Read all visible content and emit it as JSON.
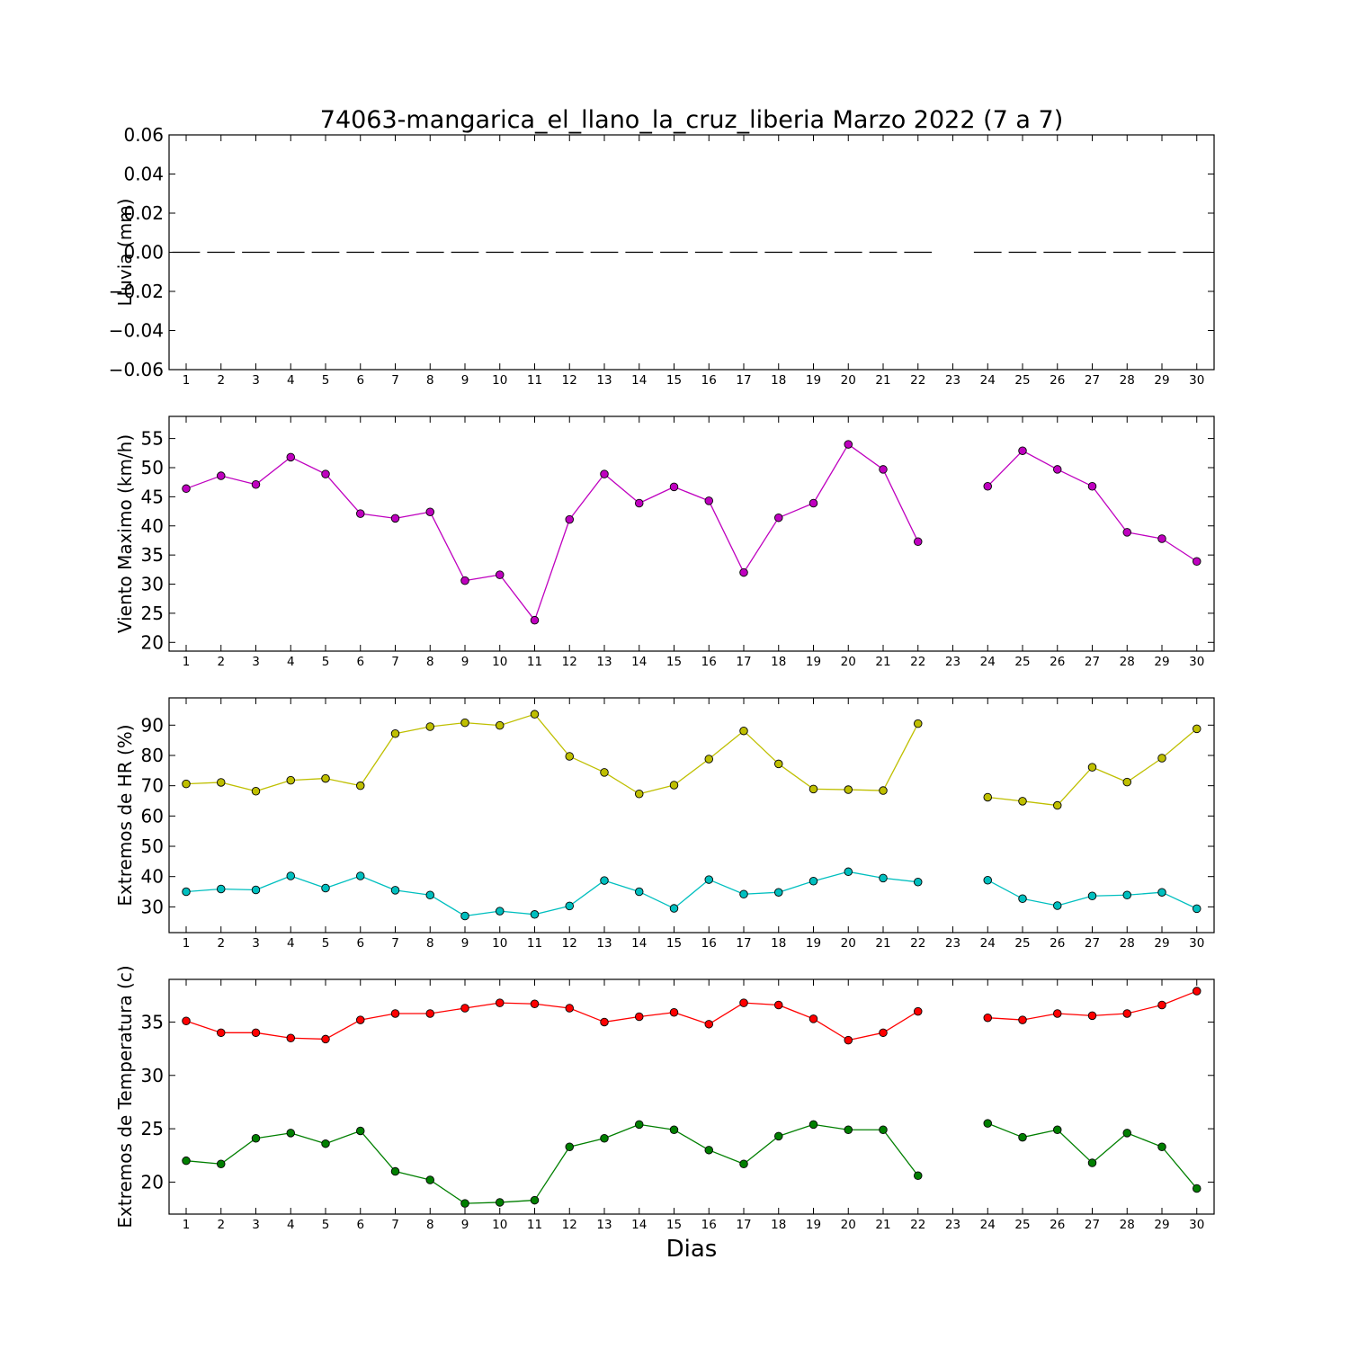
{
  "title": "74063-mangarica_el_llano_la_cruz_liberia Marzo 2022  (7 a 7)",
  "xlabel": "Dias",
  "chart_data": [
    {
      "type": "line",
      "ylabel": "Lluvia (mm)",
      "ylim": [
        -0.06,
        0.06
      ],
      "yticks": [
        -0.06,
        -0.04,
        -0.02,
        0.0,
        0.02,
        0.04,
        0.06
      ],
      "ytick_labels": [
        "−0.06",
        "−0.04",
        "−0.02",
        "0.00",
        "0.02",
        "0.04",
        "0.06"
      ],
      "categories": [
        "1",
        "2",
        "3",
        "4",
        "5",
        "6",
        "7",
        "8",
        "9",
        "10",
        "11",
        "12",
        "13",
        "14",
        "15",
        "16",
        "17",
        "18",
        "19",
        "20",
        "21",
        "22",
        "23",
        "24",
        "25",
        "26",
        "27",
        "28",
        "29",
        "30"
      ],
      "series": [
        {
          "style": "bar-dash",
          "color": "#000000",
          "values": [
            0,
            0,
            0,
            0,
            0,
            0,
            0,
            0,
            0,
            0,
            0,
            0,
            0,
            0,
            0,
            0,
            0,
            0,
            0,
            0,
            0,
            0,
            null,
            0,
            0,
            0,
            0,
            0,
            0,
            0
          ]
        }
      ]
    },
    {
      "type": "line",
      "ylabel": "Viento Maximo (km/h)",
      "ylim": [
        18.5,
        58.8
      ],
      "yticks": [
        20,
        25,
        30,
        35,
        40,
        45,
        50,
        55
      ],
      "ytick_labels": [
        "20",
        "25",
        "30",
        "35",
        "40",
        "45",
        "50",
        "55"
      ],
      "categories": [
        "1",
        "2",
        "3",
        "4",
        "5",
        "6",
        "7",
        "8",
        "9",
        "10",
        "11",
        "12",
        "13",
        "14",
        "15",
        "16",
        "17",
        "18",
        "19",
        "20",
        "21",
        "22",
        "23",
        "24",
        "25",
        "26",
        "27",
        "28",
        "29",
        "30"
      ],
      "series": [
        {
          "color": "#bf00bf",
          "values": [
            46.4,
            48.6,
            47.1,
            51.8,
            48.9,
            42.1,
            41.3,
            42.4,
            30.6,
            31.6,
            23.8,
            41.1,
            48.9,
            43.9,
            46.7,
            44.3,
            32.0,
            41.4,
            43.9,
            54.0,
            49.7,
            37.3,
            null,
            46.8,
            52.9,
            49.7,
            46.8,
            38.9,
            37.8,
            33.9
          ]
        }
      ]
    },
    {
      "type": "line",
      "ylabel": "Extremos de HR (%)",
      "ylim": [
        21.5,
        99.0
      ],
      "yticks": [
        30,
        40,
        50,
        60,
        70,
        80,
        90
      ],
      "ytick_labels": [
        "30",
        "40",
        "50",
        "60",
        "70",
        "80",
        "90"
      ],
      "categories": [
        "1",
        "2",
        "3",
        "4",
        "5",
        "6",
        "7",
        "8",
        "9",
        "10",
        "11",
        "12",
        "13",
        "14",
        "15",
        "16",
        "17",
        "18",
        "19",
        "20",
        "21",
        "22",
        "23",
        "24",
        "25",
        "26",
        "27",
        "28",
        "29",
        "30"
      ],
      "series": [
        {
          "color": "#bfbf00",
          "values": [
            70.6,
            71.1,
            68.2,
            71.8,
            72.4,
            70.0,
            87.2,
            89.5,
            90.8,
            89.9,
            93.6,
            79.7,
            74.4,
            67.3,
            70.2,
            78.8,
            88.1,
            77.2,
            68.9,
            68.7,
            68.4,
            90.5,
            null,
            66.2,
            64.9,
            63.5,
            76.1,
            71.2,
            79.1,
            88.8
          ]
        },
        {
          "color": "#00bfbf",
          "values": [
            35.0,
            35.9,
            35.6,
            40.2,
            36.2,
            40.2,
            35.5,
            33.9,
            27.0,
            28.6,
            27.5,
            30.3,
            38.7,
            35.0,
            29.5,
            39.0,
            34.2,
            34.8,
            38.5,
            41.6,
            39.5,
            38.2,
            null,
            38.8,
            32.7,
            30.4,
            33.6,
            33.9,
            34.8,
            29.4
          ]
        }
      ]
    },
    {
      "type": "line",
      "ylabel": "Extremos de Temperatura (c)",
      "ylim": [
        17.0,
        39.0
      ],
      "yticks": [
        20,
        25,
        30,
        35
      ],
      "ytick_labels": [
        "20",
        "25",
        "30",
        "35"
      ],
      "categories": [
        "1",
        "2",
        "3",
        "4",
        "5",
        "6",
        "7",
        "8",
        "9",
        "10",
        "11",
        "12",
        "13",
        "14",
        "15",
        "16",
        "17",
        "18",
        "19",
        "20",
        "21",
        "22",
        "23",
        "24",
        "25",
        "26",
        "27",
        "28",
        "29",
        "30"
      ],
      "series": [
        {
          "color": "#ff0000",
          "values": [
            35.1,
            34.0,
            34.0,
            33.5,
            33.4,
            35.2,
            35.8,
            35.8,
            36.3,
            36.8,
            36.7,
            36.3,
            35.0,
            35.5,
            35.9,
            34.8,
            36.8,
            36.6,
            35.3,
            33.3,
            34.0,
            36.0,
            null,
            35.4,
            35.2,
            35.8,
            35.6,
            35.8,
            36.6,
            37.9
          ]
        },
        {
          "color": "#007f00",
          "values": [
            22.0,
            21.7,
            24.1,
            24.6,
            23.6,
            24.8,
            21.0,
            20.2,
            18.0,
            18.1,
            18.3,
            23.3,
            24.1,
            25.4,
            24.9,
            23.0,
            21.7,
            24.3,
            25.4,
            24.9,
            24.9,
            20.6,
            null,
            25.5,
            24.2,
            24.9,
            21.8,
            24.6,
            23.3,
            19.4
          ]
        }
      ]
    }
  ]
}
